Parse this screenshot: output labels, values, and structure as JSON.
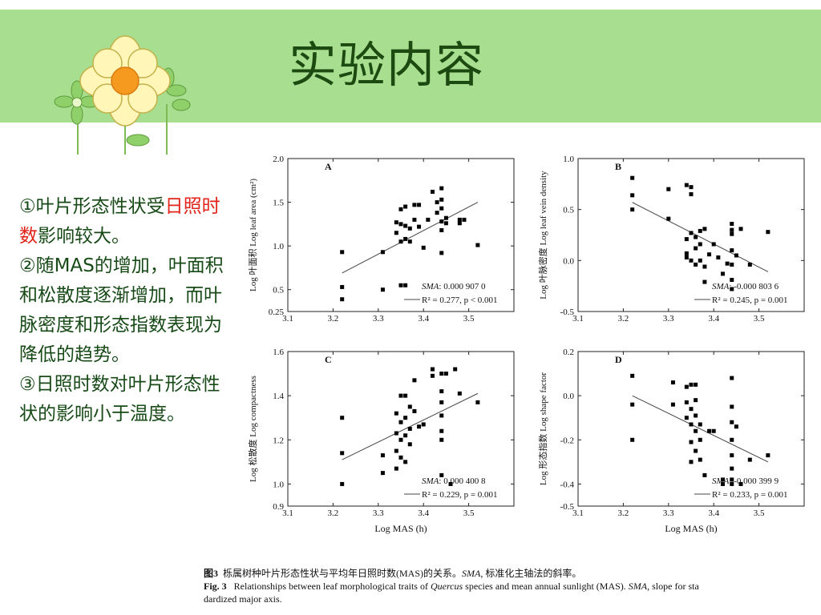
{
  "slide": {
    "title": "实验内容",
    "points": [
      {
        "a": "①叶片形态性状受",
        "hl": "日照时数",
        "b": "影响较大。"
      },
      {
        "a": "②随MAS的增加，叶面积和松散度逐渐增加，而叶脉密度和形态指数表现为降低的趋势。",
        "hl": "",
        "b": ""
      },
      {
        "a": "③日照时数对叶片形态性状的影响小于温度。",
        "hl": "",
        "b": ""
      }
    ]
  },
  "colors": {
    "banner": "#a7de8f",
    "title": "#1d4a10",
    "text": "#174a17",
    "highlight": "#e2231a"
  },
  "figure_caption": {
    "cn_label": "图3",
    "cn_text": "栎属树种叶片形态性状与平均年日照时数(MAS)的关系。",
    "cn_sma": "SMA,",
    "cn_tail": "标准化主轴法的斜率。",
    "en_label": "Fig. 3",
    "en_a": "Relationships between leaf morphological traits of",
    "en_genus": "Quercus",
    "en_b": "species and mean annual sunlight (MAS).",
    "en_sma": "SMA,",
    "en_c": "slope for sta",
    "en_line2": "dardized major axis."
  },
  "chart_data": [
    {
      "type": "scatter",
      "panel": "A",
      "ylabel": "Log 叶面积 Log leaf area (cm²)",
      "xlabel": "",
      "xlim": [
        3.1,
        3.6
      ],
      "ylim": [
        0.25,
        2.0
      ],
      "xticks": [
        "3.1",
        "3.2",
        "3.3",
        "3.4",
        "3.5"
      ],
      "yticks": [
        "0.25",
        "0.5",
        "1.0",
        "1.5",
        "2.0"
      ],
      "sma_label": "SMA",
      "sma_value": ": 0.000 907 0",
      "r2_text": "R² = 0.277,  p < 0.001",
      "fit": [
        [
          3.22,
          0.69
        ],
        [
          3.52,
          1.5
        ]
      ],
      "points": [
        [
          3.22,
          0.93
        ],
        [
          3.22,
          0.53
        ],
        [
          3.22,
          0.39
        ],
        [
          3.31,
          0.93
        ],
        [
          3.31,
          0.5
        ],
        [
          3.34,
          1.27
        ],
        [
          3.34,
          1.15
        ],
        [
          3.35,
          1.42
        ],
        [
          3.35,
          1.25
        ],
        [
          3.35,
          1.05
        ],
        [
          3.35,
          0.55
        ],
        [
          3.36,
          1.45
        ],
        [
          3.36,
          1.23
        ],
        [
          3.36,
          1.08
        ],
        [
          3.36,
          0.55
        ],
        [
          3.37,
          1.2
        ],
        [
          3.37,
          1.05
        ],
        [
          3.38,
          1.47
        ],
        [
          3.38,
          1.3
        ],
        [
          3.39,
          1.47
        ],
        [
          3.39,
          1.22
        ],
        [
          3.4,
          0.98
        ],
        [
          3.41,
          1.3
        ],
        [
          3.42,
          1.62
        ],
        [
          3.43,
          1.5
        ],
        [
          3.43,
          1.38
        ],
        [
          3.44,
          1.66
        ],
        [
          3.44,
          1.53
        ],
        [
          3.44,
          1.43
        ],
        [
          3.44,
          1.28
        ],
        [
          3.44,
          1.18
        ],
        [
          3.44,
          0.92
        ],
        [
          3.48,
          1.3
        ],
        [
          3.48,
          1.26
        ],
        [
          3.49,
          1.3
        ],
        [
          3.52,
          1.01
        ],
        [
          3.45,
          1.32
        ],
        [
          3.45,
          1.26
        ]
      ]
    },
    {
      "type": "scatter",
      "panel": "B",
      "ylabel": "Log 叶脉密度 Log leaf vein density",
      "xlabel": "",
      "xlim": [
        3.1,
        3.6
      ],
      "ylim": [
        -0.5,
        1.0
      ],
      "xticks": [
        "3.1",
        "3.2",
        "3.3",
        "3.4",
        "3.5"
      ],
      "yticks": [
        "-0.5",
        "0.0",
        "0.5",
        "1.0"
      ],
      "sma_label": "SMA",
      "sma_value": ": -0.000 803 6",
      "r2_text": "R² = 0.245,  p = 0.001",
      "fit": [
        [
          3.22,
          0.57
        ],
        [
          3.52,
          -0.11
        ]
      ],
      "points": [
        [
          3.22,
          0.81
        ],
        [
          3.22,
          0.64
        ],
        [
          3.22,
          0.5
        ],
        [
          3.3,
          0.7
        ],
        [
          3.3,
          0.41
        ],
        [
          3.34,
          0.74
        ],
        [
          3.34,
          0.21
        ],
        [
          3.34,
          0.07
        ],
        [
          3.34,
          0.03
        ],
        [
          3.35,
          0.72
        ],
        [
          3.35,
          0.65
        ],
        [
          3.35,
          0.27
        ],
        [
          3.35,
          0.0
        ],
        [
          3.36,
          0.23
        ],
        [
          3.36,
          0.12
        ],
        [
          3.36,
          -0.04
        ],
        [
          3.37,
          0.29
        ],
        [
          3.37,
          0.16
        ],
        [
          3.37,
          0.0
        ],
        [
          3.38,
          0.31
        ],
        [
          3.38,
          -0.21
        ],
        [
          3.38,
          -0.06
        ],
        [
          3.39,
          0.06
        ],
        [
          3.4,
          0.16
        ],
        [
          3.41,
          0.03
        ],
        [
          3.42,
          -0.13
        ],
        [
          3.43,
          -0.03
        ],
        [
          3.44,
          0.36
        ],
        [
          3.44,
          0.3
        ],
        [
          3.44,
          0.26
        ],
        [
          3.44,
          0.1
        ],
        [
          3.44,
          -0.04
        ],
        [
          3.44,
          -0.19
        ],
        [
          3.44,
          -0.28
        ],
        [
          3.46,
          0.31
        ],
        [
          3.48,
          -0.04
        ],
        [
          3.52,
          0.28
        ],
        [
          3.45,
          0.05
        ]
      ]
    },
    {
      "type": "scatter",
      "panel": "C",
      "ylabel": "Log 松散度 Log compactness",
      "xlabel": "Log MAS (h)",
      "xlim": [
        3.1,
        3.6
      ],
      "ylim": [
        0.9,
        1.6
      ],
      "xticks": [
        "3.1",
        "3.2",
        "3.3",
        "3.4",
        "3.5"
      ],
      "yticks": [
        "0.9",
        "1.0",
        "1.2",
        "1.4",
        "1.6"
      ],
      "sma_label": "SMA",
      "sma_value": ": 0.000 400 8",
      "r2_text": "R² = 0.229,  p = 0.001",
      "fit": [
        [
          3.22,
          1.11
        ],
        [
          3.52,
          1.41
        ]
      ],
      "points": [
        [
          3.22,
          1.3
        ],
        [
          3.22,
          1.14
        ],
        [
          3.22,
          1.0
        ],
        [
          3.31,
          1.13
        ],
        [
          3.31,
          1.05
        ],
        [
          3.34,
          1.32
        ],
        [
          3.34,
          1.23
        ],
        [
          3.34,
          1.15
        ],
        [
          3.34,
          1.07
        ],
        [
          3.35,
          1.4
        ],
        [
          3.35,
          1.28
        ],
        [
          3.35,
          1.2
        ],
        [
          3.35,
          1.12
        ],
        [
          3.36,
          1.4
        ],
        [
          3.36,
          1.3
        ],
        [
          3.36,
          1.22
        ],
        [
          3.36,
          1.1
        ],
        [
          3.37,
          1.35
        ],
        [
          3.37,
          1.25
        ],
        [
          3.37,
          1.18
        ],
        [
          3.38,
          1.47
        ],
        [
          3.38,
          1.33
        ],
        [
          3.39,
          1.26
        ],
        [
          3.4,
          1.27
        ],
        [
          3.42,
          1.49
        ],
        [
          3.42,
          1.52
        ],
        [
          3.44,
          1.5
        ],
        [
          3.44,
          1.42
        ],
        [
          3.44,
          1.37
        ],
        [
          3.44,
          1.31
        ],
        [
          3.44,
          1.24
        ],
        [
          3.44,
          1.2
        ],
        [
          3.44,
          1.04
        ],
        [
          3.46,
          1.0
        ],
        [
          3.47,
          1.52
        ],
        [
          3.48,
          1.41
        ],
        [
          3.52,
          1.37
        ],
        [
          3.45,
          1.5
        ]
      ]
    },
    {
      "type": "scatter",
      "panel": "D",
      "ylabel": "Log 形态指数 Log shape factor",
      "xlabel": "Log MAS (h)",
      "xlim": [
        3.1,
        3.6
      ],
      "ylim": [
        -0.5,
        0.2
      ],
      "xticks": [
        "3.1",
        "3.2",
        "3.3",
        "3.4",
        "3.5"
      ],
      "yticks": [
        "-0.5",
        "-0.4",
        "-0.2",
        "0.0",
        "0.2"
      ],
      "sma_label": "SMA",
      "sma_value": ": -0.000 399 9",
      "r2_text": "R² = 0.233,  p = 0.001",
      "fit": [
        [
          3.22,
          0.0
        ],
        [
          3.52,
          -0.3
        ]
      ],
      "points": [
        [
          3.22,
          0.09
        ],
        [
          3.22,
          -0.04
        ],
        [
          3.22,
          -0.2
        ],
        [
          3.31,
          0.06
        ],
        [
          3.31,
          -0.04
        ],
        [
          3.34,
          0.04
        ],
        [
          3.34,
          -0.03
        ],
        [
          3.34,
          -0.1
        ],
        [
          3.35,
          0.05
        ],
        [
          3.35,
          -0.06
        ],
        [
          3.35,
          -0.13
        ],
        [
          3.35,
          -0.21
        ],
        [
          3.35,
          -0.3
        ],
        [
          3.36,
          0.05
        ],
        [
          3.36,
          -0.02
        ],
        [
          3.36,
          -0.09
        ],
        [
          3.36,
          -0.16
        ],
        [
          3.36,
          -0.25
        ],
        [
          3.37,
          -0.13
        ],
        [
          3.37,
          -0.2
        ],
        [
          3.37,
          -0.29
        ],
        [
          3.38,
          -0.36
        ],
        [
          3.39,
          -0.16
        ],
        [
          3.4,
          -0.16
        ],
        [
          3.42,
          -0.38
        ],
        [
          3.42,
          -0.4
        ],
        [
          3.44,
          0.08
        ],
        [
          3.44,
          -0.05
        ],
        [
          3.44,
          -0.12
        ],
        [
          3.44,
          -0.2
        ],
        [
          3.44,
          -0.27
        ],
        [
          3.44,
          -0.33
        ],
        [
          3.44,
          -0.38
        ],
        [
          3.44,
          -0.4
        ],
        [
          3.46,
          -0.4
        ],
        [
          3.48,
          -0.29
        ],
        [
          3.52,
          -0.27
        ],
        [
          3.45,
          -0.14
        ]
      ]
    }
  ]
}
